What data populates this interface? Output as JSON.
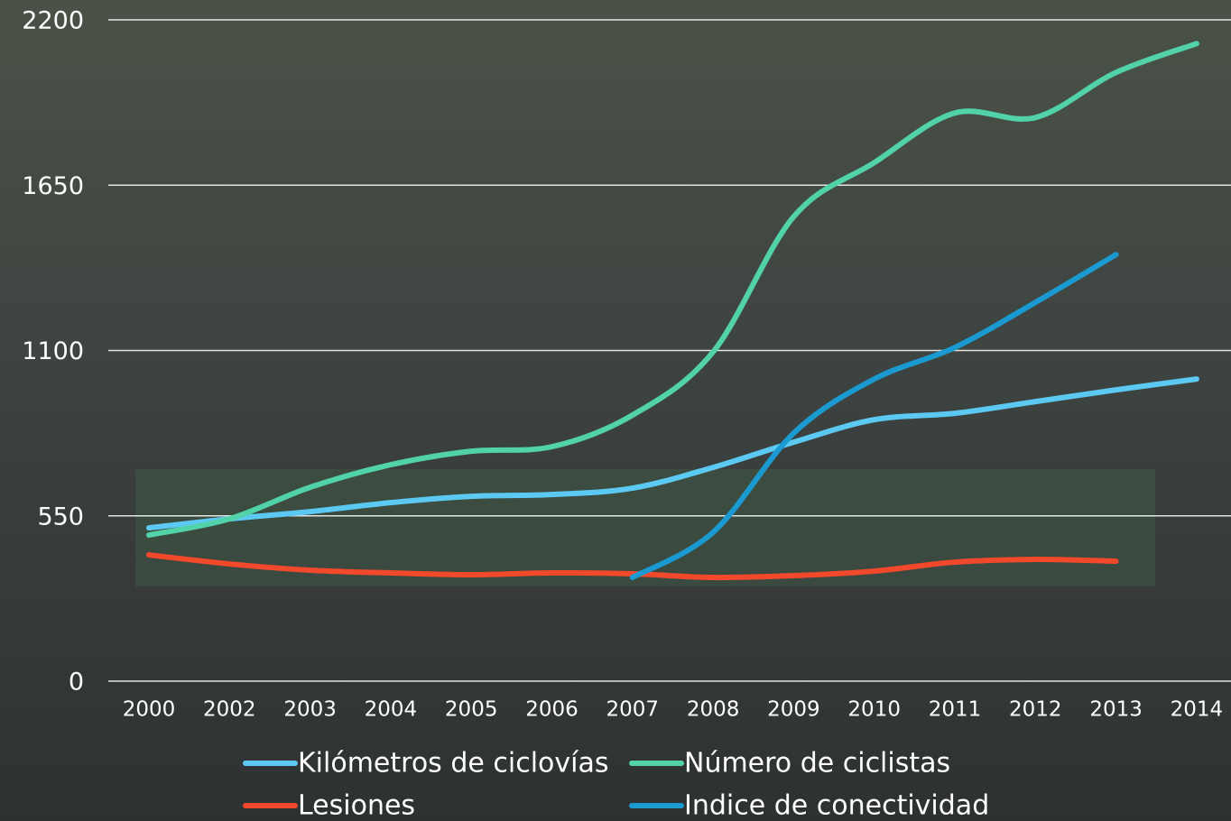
{
  "chart_data": {
    "type": "line",
    "categories": [
      "2000",
      "2002",
      "2003",
      "2004",
      "2005",
      "2006",
      "2007",
      "2008",
      "2009",
      "2010",
      "2011",
      "2012",
      "2013",
      "2014"
    ],
    "series": [
      {
        "name": "Kilómetros de ciclovías",
        "color": "#5cc9f2",
        "values": [
          510,
          540,
          564,
          594,
          615,
          621,
          642,
          711,
          795,
          870,
          891,
          930,
          969,
          1005
        ]
      },
      {
        "name": "Número de ciclistas",
        "color": "#52d2a8",
        "values": [
          486,
          540,
          645,
          720,
          765,
          780,
          885,
          1095,
          1545,
          1725,
          1890,
          1875,
          2025,
          2121
        ]
      },
      {
        "name": "Lesiones",
        "color": "#f2482b",
        "values": [
          420,
          390,
          369,
          360,
          354,
          360,
          357,
          345,
          351,
          366,
          396,
          405,
          399,
          null
        ]
      },
      {
        "name": "Indice de conectividad",
        "color": "#1a9ad0",
        "values": [
          null,
          null,
          null,
          null,
          null,
          null,
          345,
          495,
          825,
          1005,
          1110,
          1260,
          1419,
          null
        ]
      }
    ],
    "ylim": [
      0,
      2200
    ],
    "yticks": [
      0,
      550,
      1100,
      1650,
      2200
    ],
    "grid": true
  }
}
